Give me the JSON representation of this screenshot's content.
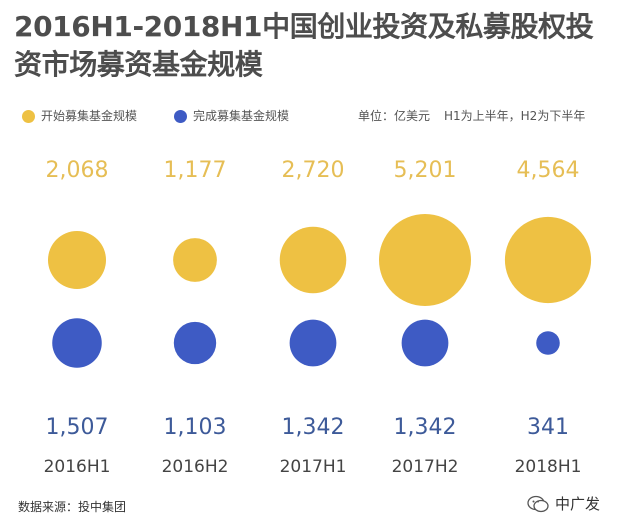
{
  "header": {
    "title": "2016H1-2018H1中国创业投资及私募股权投资市场募资基金规模"
  },
  "legend": {
    "started_label": "开始募集基金规模",
    "completed_label": "完成募集基金规模",
    "unit": "单位：亿美元",
    "note": "H1为上半年，H2为下半年"
  },
  "footer": {
    "source": "数据来源：投中集团",
    "brand": "中广发"
  },
  "colors": {
    "started": "#EEC143",
    "completed": "#3E5BC4",
    "started_label": "#E6BE55",
    "completed_label": "#3D5A99"
  },
  "chart_data": {
    "type": "bubble",
    "categories": [
      "2016H1",
      "2016H2",
      "2017H1",
      "2017H2",
      "2018H1"
    ],
    "series": [
      {
        "name": "开始募集基金规模",
        "values": [
          2068,
          1177,
          2720,
          5201,
          4564
        ],
        "value_labels": [
          "2,068",
          "1,177",
          "2,720",
          "5,201",
          "4,564"
        ]
      },
      {
        "name": "完成募集基金规模",
        "values": [
          1507,
          1103,
          1342,
          1342,
          341
        ],
        "value_labels": [
          "1,507",
          "1,103",
          "1,342",
          "1,342",
          "341"
        ]
      }
    ],
    "unit": "亿美元"
  }
}
